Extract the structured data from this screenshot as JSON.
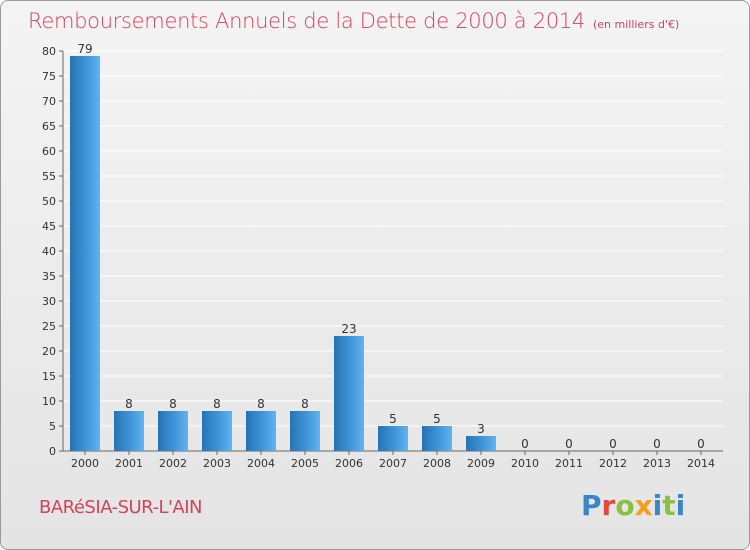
{
  "header": {
    "title": "Remboursements Annuels de la Dette de 2000 à 2014",
    "unit": "(en milliers d'€)"
  },
  "footer": {
    "commune": "BARéSIA-SUR-L'AIN",
    "logo_letters": [
      "P",
      "r",
      "o",
      "x",
      "i",
      "t",
      "i"
    ]
  },
  "colors": {
    "title": "#d1435b",
    "bar_dark": "#2a77b8",
    "bar_light": "#5fb0ee",
    "grid": "#ffffff",
    "axis": "#555555"
  },
  "chart_data": {
    "type": "bar",
    "title": "Remboursements Annuels de la Dette de 2000 à 2014",
    "xlabel": "",
    "ylabel": "",
    "categories": [
      "2000",
      "2001",
      "2002",
      "2003",
      "2004",
      "2005",
      "2006",
      "2007",
      "2008",
      "2009",
      "2010",
      "2011",
      "2012",
      "2013",
      "2014"
    ],
    "values": [
      79,
      8,
      8,
      8,
      8,
      8,
      23,
      5,
      5,
      3,
      0,
      0,
      0,
      0,
      0
    ],
    "ylim": [
      0,
      80
    ],
    "yticks": [
      0,
      5,
      10,
      15,
      20,
      25,
      30,
      35,
      40,
      45,
      50,
      55,
      60,
      65,
      70,
      75,
      80
    ],
    "grid": true,
    "data_labels": true
  }
}
